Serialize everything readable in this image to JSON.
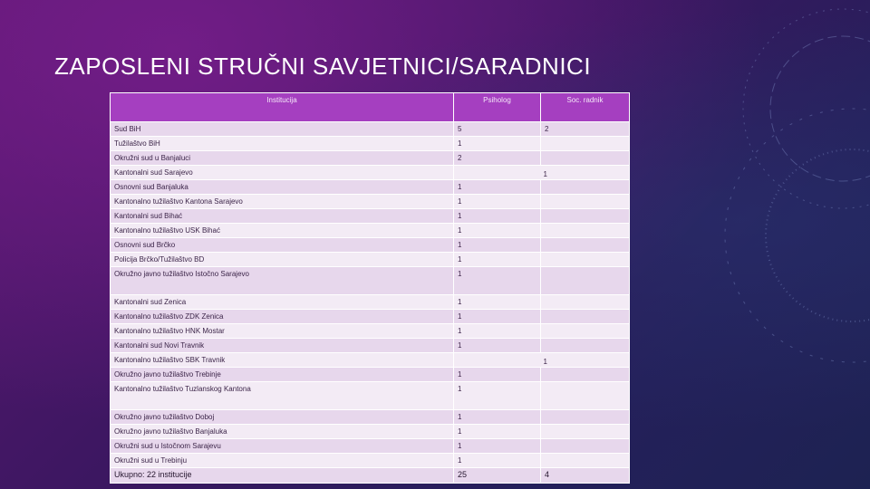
{
  "slide": {
    "title": "ZAPOSLENI STRUČNI SAVJETNICI/SARADNICI"
  },
  "table": {
    "headers": [
      "Institucija",
      "Psiholog",
      "Soc. radnik"
    ],
    "rows": [
      {
        "institucija": "Sud BiH",
        "psiholog": "5",
        "soc_radnik": "2"
      },
      {
        "institucija": "Tužilaštvo BiH",
        "psiholog": "1",
        "soc_radnik": ""
      },
      {
        "institucija": "Okružni sud u Banjaluci",
        "psiholog": "2",
        "soc_radnik": ""
      },
      {
        "institucija": "Kantonalni sud Sarajevo",
        "psiholog": "",
        "soc_radnik": "1"
      },
      {
        "institucija": "Osnovni sud Banjaluka",
        "psiholog": "1",
        "soc_radnik": ""
      },
      {
        "institucija": "Kantonalno tužilaštvo Kantona Sarajevo",
        "psiholog": "1",
        "soc_radnik": ""
      },
      {
        "institucija": "Kantonalni sud Bihać",
        "psiholog": "1",
        "soc_radnik": ""
      },
      {
        "institucija": "Kantonalno tužilaštvo USK Bihać",
        "psiholog": "1",
        "soc_radnik": ""
      },
      {
        "institucija": "Osnovni sud Brčko",
        "psiholog": "1",
        "soc_radnik": ""
      },
      {
        "institucija": "Policija Brčko/Tužilaštvo BD",
        "psiholog": "1",
        "soc_radnik": ""
      },
      {
        "institucija": "Okružno javno tužilaštvo Istočno Sarajevo",
        "psiholog": "1",
        "soc_radnik": ""
      },
      {
        "institucija": "Kantonalni sud Zenica",
        "psiholog": "1",
        "soc_radnik": ""
      },
      {
        "institucija": "Kantonalno tužilaštvo ZDK Zenica",
        "psiholog": "1",
        "soc_radnik": ""
      },
      {
        "institucija": "Kantonalno tužilaštvo HNK Mostar",
        "psiholog": "1",
        "soc_radnik": ""
      },
      {
        "institucija": "Kantonalni sud Novi Travnik",
        "psiholog": "1",
        "soc_radnik": ""
      },
      {
        "institucija": "Kantonalno tužilaštvo SBK Travnik",
        "psiholog": "",
        "soc_radnik": "1"
      },
      {
        "institucija": "Okružno javno tužilaštvo Trebinje",
        "psiholog": "1",
        "soc_radnik": ""
      },
      {
        "institucija": "Kantonalno tužilaštvo Tuzlanskog Kantona",
        "psiholog": "1",
        "soc_radnik": ""
      },
      {
        "institucija": "Okružno javno tužilaštvo Doboj",
        "psiholog": "1",
        "soc_radnik": ""
      },
      {
        "institucija": "Okružno javno tužilaštvo Banjaluka",
        "psiholog": "1",
        "soc_radnik": ""
      },
      {
        "institucija": "Okružni sud u Istočnom Sarajevu",
        "psiholog": "1",
        "soc_radnik": ""
      },
      {
        "institucija": "Okružni sud u Trebinju",
        "psiholog": "1",
        "soc_radnik": ""
      }
    ],
    "total": {
      "institucija": "Ukupno: 22 institucije",
      "psiholog": "25",
      "soc_radnik": "4"
    }
  }
}
